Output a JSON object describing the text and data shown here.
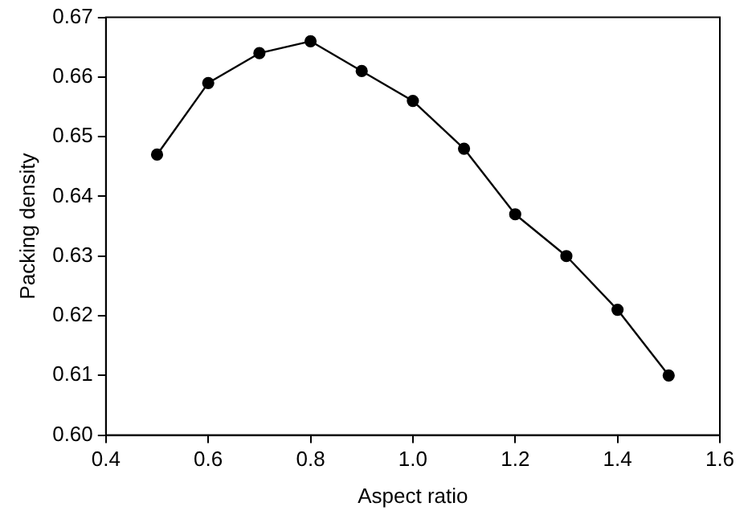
{
  "chart_data": {
    "type": "line",
    "xlabel": "Aspect ratio",
    "ylabel": "Packing density",
    "x": [
      0.5,
      0.6,
      0.7,
      0.8,
      0.9,
      1.0,
      1.1,
      1.2,
      1.3,
      1.4,
      1.5
    ],
    "series": [
      {
        "color": "#000000",
        "values": [
          0.647,
          0.659,
          0.664,
          0.666,
          0.661,
          0.656,
          0.648,
          0.637,
          0.63,
          0.621,
          0.61
        ]
      }
    ],
    "xlim": [
      0.4,
      1.6
    ],
    "xticks": [
      0.4,
      0.6,
      0.8,
      {
        "value": 1,
        "label": "1.0"
      },
      1.2,
      1.4,
      1.6
    ],
    "ylim": [
      0.6,
      0.67
    ],
    "yticks": [
      {
        "value": 0.6,
        "label": "0.60"
      },
      0.61,
      0.62,
      0.63,
      0.64,
      0.65,
      0.66,
      0.67
    ],
    "grid": false,
    "legend": false,
    "marker": "circle",
    "line_style": "solid"
  }
}
